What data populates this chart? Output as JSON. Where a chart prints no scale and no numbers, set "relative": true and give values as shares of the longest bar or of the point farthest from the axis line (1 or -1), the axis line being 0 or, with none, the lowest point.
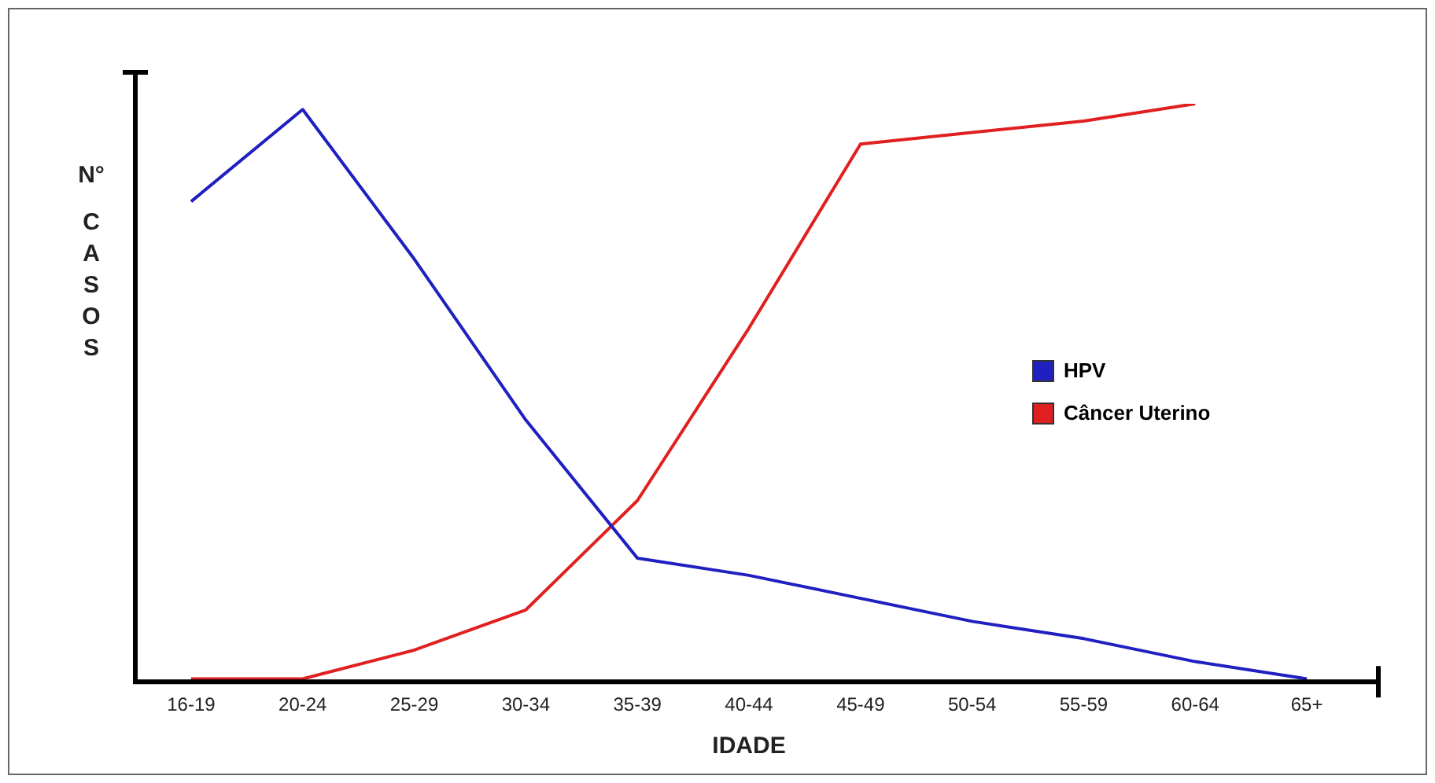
{
  "chart_data": {
    "type": "line",
    "relative": true,
    "xlabel": "IDADE",
    "ylabel": "N° CASOS",
    "categories": [
      "16-19",
      "20-24",
      "25-29",
      "30-34",
      "35-39",
      "40-44",
      "45-49",
      "50-54",
      "55-59",
      "60-64",
      "65+"
    ],
    "series": [
      {
        "name": "HPV",
        "color": "#2020c0",
        "values": [
          0.83,
          0.99,
          0.73,
          0.45,
          0.21,
          0.18,
          0.14,
          0.1,
          0.07,
          0.03,
          0
        ]
      },
      {
        "name": "Câncer Uterino",
        "color": "#e02020",
        "values": [
          0,
          0,
          0.05,
          0.12,
          0.31,
          0.61,
          0.93,
          0.95,
          0.97,
          1,
          null
        ]
      }
    ],
    "legend": "right",
    "grid": false,
    "marker": "none",
    "line_style": "solid"
  }
}
